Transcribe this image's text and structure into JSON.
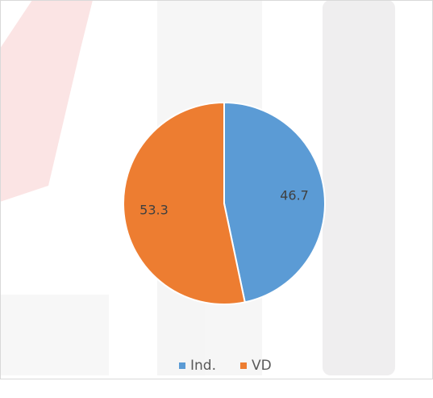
{
  "chart_data": {
    "type": "pie",
    "categories": [
      "Ind.",
      "VD"
    ],
    "values": [
      46.7,
      53.3
    ],
    "colors": [
      "#5b9bd5",
      "#ed7d31"
    ],
    "legend": "bottom"
  }
}
